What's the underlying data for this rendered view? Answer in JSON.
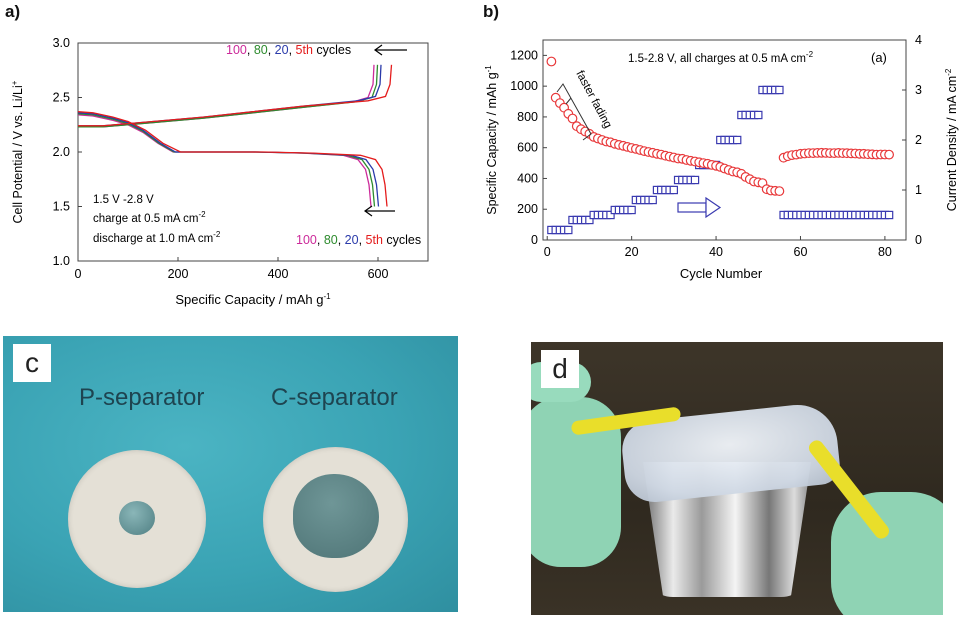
{
  "panel_labels": {
    "a": "a)",
    "b": "b)",
    "c": "c",
    "d": "d"
  },
  "colors": {
    "c100": "#cc2a9a",
    "c80": "#2e8b2e",
    "c20": "#2a3aaa",
    "c5": "#e41c1c",
    "capacity": "#e8383a",
    "current": "#3a3ab0"
  },
  "chart_data": [
    {
      "type": "line",
      "xlabel": "Specific Capacity / mAh g",
      "xlabel_sup": "-1",
      "ylabel": "Cell Potential / V vs. Li/Li",
      "ylabel_sup": "+",
      "xlim": [
        0,
        700
      ],
      "ylim": [
        1.0,
        3.0
      ],
      "xticks": [
        "0",
        "200",
        "400",
        "600"
      ],
      "yticks": [
        "1.0",
        "1.5",
        "2.0",
        "2.5",
        "3.0"
      ],
      "annotation_lines": [
        "1.5 V -2.8 V",
        "charge at 0.5 mA cm",
        "discharge at 1.0 mA cm"
      ],
      "annotation_sups": [
        "",
        "-2",
        "-2"
      ],
      "cycle_labels": [
        "100",
        "80",
        "20",
        "5th"
      ],
      "cycles_word": "cycles",
      "series": [
        {
          "name": "100",
          "discharge": [
            [
              0,
              2.34
            ],
            [
              30,
              2.33
            ],
            [
              70,
              2.29
            ],
            [
              100,
              2.25
            ],
            [
              130,
              2.18
            ],
            [
              160,
              2.08
            ],
            [
              190,
              2.0
            ],
            [
              250,
              2.0
            ],
            [
              350,
              2.0
            ],
            [
              450,
              1.99
            ],
            [
              530,
              1.97
            ],
            [
              560,
              1.93
            ],
            [
              575,
              1.84
            ],
            [
              582,
              1.7
            ],
            [
              586,
              1.5
            ]
          ],
          "charge": [
            [
              0,
              2.23
            ],
            [
              50,
              2.23
            ],
            [
              150,
              2.27
            ],
            [
              250,
              2.31
            ],
            [
              350,
              2.36
            ],
            [
              450,
              2.41
            ],
            [
              550,
              2.46
            ],
            [
              580,
              2.5
            ],
            [
              590,
              2.62
            ],
            [
              592,
              2.8
            ]
          ]
        },
        {
          "name": "80",
          "discharge": [
            [
              0,
              2.35
            ],
            [
              30,
              2.34
            ],
            [
              70,
              2.3
            ],
            [
              100,
              2.26
            ],
            [
              130,
              2.19
            ],
            [
              162,
              2.08
            ],
            [
              192,
              2.0
            ],
            [
              255,
              2.0
            ],
            [
              355,
              2.0
            ],
            [
              455,
              1.99
            ],
            [
              538,
              1.97
            ],
            [
              568,
              1.93
            ],
            [
              582,
              1.84
            ],
            [
              589,
              1.7
            ],
            [
              593,
              1.5
            ]
          ],
          "charge": [
            [
              0,
              2.23
            ],
            [
              50,
              2.23
            ],
            [
              150,
              2.27
            ],
            [
              250,
              2.31
            ],
            [
              350,
              2.36
            ],
            [
              450,
              2.41
            ],
            [
              555,
              2.46
            ],
            [
              588,
              2.5
            ],
            [
              597,
              2.62
            ],
            [
              599,
              2.8
            ]
          ]
        },
        {
          "name": "20",
          "discharge": [
            [
              0,
              2.36
            ],
            [
              30,
              2.35
            ],
            [
              70,
              2.31
            ],
            [
              100,
              2.27
            ],
            [
              130,
              2.2
            ],
            [
              165,
              2.08
            ],
            [
              195,
              2.0
            ],
            [
              260,
              2.0
            ],
            [
              360,
              2.0
            ],
            [
              460,
              1.99
            ],
            [
              546,
              1.97
            ],
            [
              576,
              1.93
            ],
            [
              590,
              1.84
            ],
            [
              597,
              1.7
            ],
            [
              601,
              1.5
            ]
          ],
          "charge": [
            [
              0,
              2.24
            ],
            [
              50,
              2.24
            ],
            [
              150,
              2.28
            ],
            [
              250,
              2.32
            ],
            [
              350,
              2.37
            ],
            [
              450,
              2.42
            ],
            [
              560,
              2.47
            ],
            [
              595,
              2.51
            ],
            [
              604,
              2.62
            ],
            [
              606,
              2.8
            ]
          ]
        },
        {
          "name": "5th",
          "discharge": [
            [
              0,
              2.37
            ],
            [
              30,
              2.36
            ],
            [
              70,
              2.32
            ],
            [
              100,
              2.28
            ],
            [
              135,
              2.2
            ],
            [
              170,
              2.08
            ],
            [
              205,
              2.0
            ],
            [
              270,
              2.0
            ],
            [
              370,
              2.0
            ],
            [
              470,
              1.99
            ],
            [
              565,
              1.97
            ],
            [
              595,
              1.93
            ],
            [
              608,
              1.84
            ],
            [
              614,
              1.7
            ],
            [
              618,
              1.5
            ]
          ],
          "charge": [
            [
              0,
              2.24
            ],
            [
              50,
              2.24
            ],
            [
              150,
              2.28
            ],
            [
              250,
              2.32
            ],
            [
              350,
              2.37
            ],
            [
              450,
              2.42
            ],
            [
              580,
              2.47
            ],
            [
              615,
              2.51
            ],
            [
              624,
              2.62
            ],
            [
              627,
              2.8
            ]
          ]
        }
      ]
    },
    {
      "type": "scatter",
      "xlabel": "Cycle Number",
      "ylabel_left": "Specific Capacity / mAh g",
      "ylabel_left_sup": "-1",
      "ylabel_right": "Current Density / mA cm",
      "ylabel_right_sup": "-2",
      "xlim": [
        -1,
        85
      ],
      "ylim_left": [
        0,
        1300
      ],
      "ylim_right": [
        0,
        4
      ],
      "xticks": [
        "0",
        "20",
        "40",
        "60",
        "80"
      ],
      "yticks_left": [
        "0",
        "200",
        "400",
        "600",
        "800",
        "1000",
        "1200"
      ],
      "yticks_right": [
        "0",
        "1",
        "2",
        "3",
        "4"
      ],
      "condition": "1.5-2.8 V, all charges at 0.5 mA cm",
      "condition_sup": "-2",
      "corner_tag": "(a)",
      "fading_label": "faster fading",
      "capacity": {
        "x": [
          1,
          2,
          3,
          4,
          5,
          6,
          7,
          8,
          9,
          10,
          11,
          12,
          13,
          14,
          15,
          16,
          17,
          18,
          19,
          20,
          21,
          22,
          23,
          24,
          25,
          26,
          27,
          28,
          29,
          30,
          31,
          32,
          33,
          34,
          35,
          36,
          37,
          38,
          39,
          40,
          41,
          42,
          43,
          44,
          45,
          46,
          47,
          48,
          49,
          50,
          51,
          52,
          53,
          54,
          55,
          56,
          57,
          58,
          59,
          60,
          61,
          62,
          63,
          64,
          65,
          66,
          67,
          68,
          69,
          70,
          71,
          72,
          73,
          74,
          75,
          76,
          77,
          78,
          79,
          80,
          81
        ],
        "y": [
          1160,
          925,
          890,
          860,
          820,
          790,
          740,
          720,
          705,
          690,
          670,
          660,
          650,
          640,
          635,
          625,
          618,
          612,
          605,
          598,
          592,
          585,
          578,
          572,
          567,
          560,
          555,
          548,
          542,
          536,
          530,
          528,
          520,
          515,
          510,
          505,
          500,
          495,
          488,
          482,
          475,
          465,
          455,
          445,
          440,
          430,
          410,
          395,
          380,
          375,
          370,
          330,
          322,
          320,
          318,
          535,
          545,
          552,
          555,
          560,
          562,
          565,
          565,
          566,
          567,
          566,
          565,
          565,
          566,
          565,
          564,
          563,
          562,
          560,
          560,
          558,
          557,
          555,
          556,
          556,
          555
        ]
      },
      "current": {
        "x": [
          1,
          2,
          3,
          4,
          5,
          6,
          7,
          8,
          9,
          10,
          11,
          12,
          13,
          14,
          15,
          16,
          17,
          18,
          19,
          20,
          21,
          22,
          23,
          24,
          25,
          26,
          27,
          28,
          29,
          30,
          31,
          32,
          33,
          34,
          35,
          36,
          37,
          38,
          39,
          40,
          41,
          42,
          43,
          44,
          45,
          46,
          47,
          48,
          49,
          50,
          51,
          52,
          53,
          54,
          55,
          56,
          57,
          58,
          59,
          60,
          61,
          62,
          63,
          64,
          65,
          66,
          67,
          68,
          69,
          70,
          71,
          72,
          73,
          74,
          75,
          76,
          77,
          78,
          79,
          80,
          81
        ],
        "y": [
          0.2,
          0.2,
          0.2,
          0.2,
          0.2,
          0.4,
          0.4,
          0.4,
          0.4,
          0.4,
          0.5,
          0.5,
          0.5,
          0.5,
          0.5,
          0.6,
          0.6,
          0.6,
          0.6,
          0.6,
          0.8,
          0.8,
          0.8,
          0.8,
          0.8,
          1.0,
          1.0,
          1.0,
          1.0,
          1.0,
          1.2,
          1.2,
          1.2,
          1.2,
          1.2,
          1.5,
          1.5,
          1.5,
          1.5,
          1.5,
          2.0,
          2.0,
          2.0,
          2.0,
          2.0,
          2.5,
          2.5,
          2.5,
          2.5,
          2.5,
          3.0,
          3.0,
          3.0,
          3.0,
          3.0,
          0.5,
          0.5,
          0.5,
          0.5,
          0.5,
          0.5,
          0.5,
          0.5,
          0.5,
          0.5,
          0.5,
          0.5,
          0.5,
          0.5,
          0.5,
          0.5,
          0.5,
          0.5,
          0.5,
          0.5,
          0.5,
          0.5,
          0.5,
          0.5,
          0.5,
          0.5
        ]
      }
    }
  ],
  "photo_c": {
    "left_caption": "P-separator",
    "right_caption": "C-separator"
  }
}
